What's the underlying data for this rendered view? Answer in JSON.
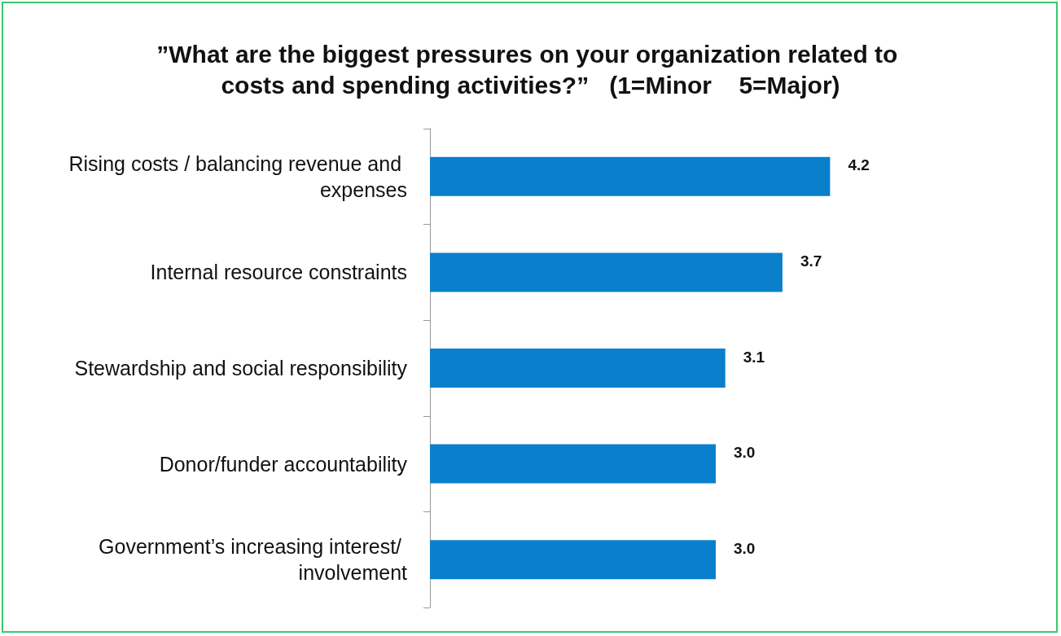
{
  "chart_data": {
    "type": "bar",
    "orientation": "horizontal",
    "title": "”What are the biggest pressures on your organization related to costs and spending activities?”   (1=Minor    5=Major)",
    "categories": [
      "Rising costs / balancing revenue and expenses",
      "Internal resource constraints",
      "Stewardship and social responsibility",
      "Donor/funder accountability",
      "Government’s increasing interest/ involvement"
    ],
    "values": [
      4.2,
      3.7,
      3.1,
      3.0,
      3.0
    ],
    "value_labels": [
      "4.2",
      "3.7",
      "3.1",
      "3.0",
      "3.0"
    ],
    "color": "#0a7fcc"
  }
}
